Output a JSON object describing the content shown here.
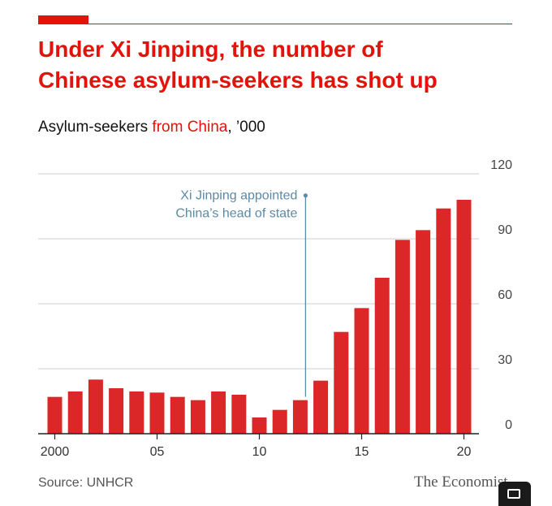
{
  "header": {
    "title_line1": "Under Xi Jinping, the number of",
    "title_line2": "Chinese asylum-seekers has shot up",
    "subtitle_pre": "Asylum-seekers ",
    "subtitle_highlight": "from China",
    "subtitle_post": ", ’000"
  },
  "footer": {
    "source": "Source: UNHCR",
    "brand": "The Economist"
  },
  "colors": {
    "accent": "#e3120b",
    "bar": "#db2727",
    "annotation": "#5b8aa6",
    "grid": "#cfcfcf"
  },
  "chart_data": {
    "type": "bar",
    "categories": [
      2000,
      2001,
      2002,
      2003,
      2004,
      2005,
      2006,
      2007,
      2008,
      2009,
      2010,
      2011,
      2012,
      2013,
      2014,
      2015,
      2016,
      2017,
      2018,
      2019,
      2020
    ],
    "values": [
      17,
      19.5,
      25,
      21,
      19.5,
      19,
      17,
      15.5,
      19.5,
      18,
      7.5,
      11,
      15.5,
      24.5,
      47,
      58,
      72,
      89.5,
      94,
      104,
      108
    ],
    "x_tick_labels": [
      {
        "x": 2000,
        "label": "2000"
      },
      {
        "x": 2005,
        "label": "05"
      },
      {
        "x": 2010,
        "label": "10"
      },
      {
        "x": 2015,
        "label": "15"
      },
      {
        "x": 2020,
        "label": "20"
      }
    ],
    "y_ticks": [
      0,
      30,
      60,
      90,
      120
    ],
    "ylim": [
      0,
      120
    ],
    "grid": true,
    "y_axis_side": "right",
    "annotation": {
      "x": 2012,
      "y": 110,
      "line1": "Xi Jinping appointed",
      "line2": "China’s head of state"
    }
  }
}
